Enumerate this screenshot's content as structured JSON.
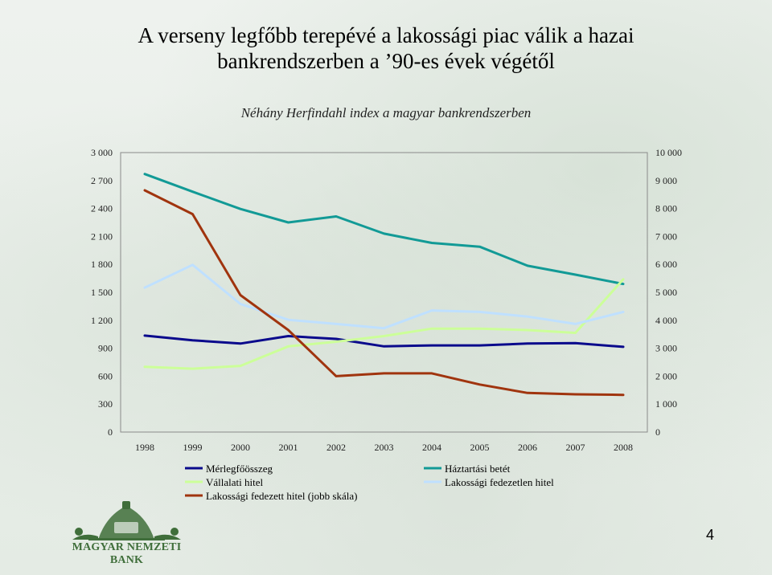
{
  "slide": {
    "title_line1": "A verseny legfőbb terepévé a lakossági piac válik a hazai",
    "title_line2": "bankrendszerben a ’90-es évek végétől",
    "page_number": "4",
    "logo_text": "MAGYAR NEMZETI BANK"
  },
  "chart_data": {
    "type": "line",
    "title": "Néhány Herfindahl index a magyar bankrendszerben",
    "categories": [
      "1998",
      "1999",
      "2000",
      "2001",
      "2002",
      "2003",
      "2004",
      "2005",
      "2006",
      "2007",
      "2008"
    ],
    "y_left": {
      "range": [
        0,
        3000
      ],
      "ticks": [
        0,
        300,
        600,
        900,
        1200,
        1500,
        1800,
        2100,
        2400,
        2700,
        3000
      ],
      "tick_labels": [
        "0",
        "300",
        "600",
        "900",
        "1 200",
        "1 500",
        "1 800",
        "2 100",
        "2 400",
        "2 700",
        "3 000"
      ]
    },
    "y_right": {
      "range": [
        0,
        10000
      ],
      "ticks": [
        0,
        1000,
        2000,
        3000,
        4000,
        5000,
        6000,
        7000,
        8000,
        9000,
        10000
      ],
      "tick_labels": [
        "0",
        "1 000",
        "2 000",
        "3 000",
        "4 000",
        "5 000",
        "6 000",
        "7 000",
        "8 000",
        "9 000",
        "10 000"
      ]
    },
    "grid": false,
    "legend_position": "bottom",
    "series": [
      {
        "name": "Mérlegfőösszeg",
        "color": "#0a0a8c",
        "axis": "left",
        "values": [
          1035,
          985,
          950,
          1030,
          1000,
          920,
          930,
          930,
          950,
          955,
          915
        ]
      },
      {
        "name": "Háztartási betét",
        "color": "#129a96",
        "axis": "left",
        "values": [
          2770,
          2580,
          2395,
          2250,
          2315,
          2130,
          2030,
          1990,
          1785,
          1690,
          1590
        ]
      },
      {
        "name": "Vállalati hitel",
        "color": "#ccff99",
        "axis": "left",
        "values": [
          700,
          680,
          710,
          920,
          970,
          1030,
          1110,
          1110,
          1095,
          1065,
          1640
        ]
      },
      {
        "name": "Lakossági fedezetlen hitel",
        "color": "#bfe0ff",
        "axis": "left",
        "values": [
          1550,
          1795,
          1375,
          1205,
          1160,
          1115,
          1305,
          1290,
          1240,
          1160,
          1290
        ]
      },
      {
        "name": "Lakossági fedezett hitel (jobb skála)",
        "color": "#a0340e",
        "axis": "right",
        "values": [
          8650,
          7800,
          4900,
          3650,
          2000,
          2100,
          2100,
          1700,
          1400,
          1350,
          1330
        ]
      }
    ]
  }
}
